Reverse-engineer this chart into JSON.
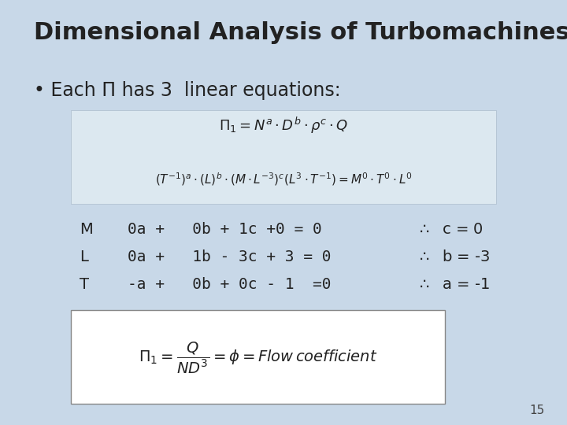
{
  "title": "Dimensional Analysis of Turbomachines",
  "background_color": "#c8d8e8",
  "title_fontsize": 22,
  "title_color": "#222222",
  "bullet_text": "Each Π has 3  linear equations:",
  "bullet_fontsize": 17,
  "eq1_box_color": "#dce8f0",
  "eq1_text1": "$\\Pi_1 = N^a \\cdot D^b \\cdot \\rho^c \\cdot Q$",
  "eq1_text2": "$\\left(T^{-1}\\right)^a \\cdot \\left(L\\right)^b \\cdot \\left(M \\cdot L^{-3}\\right)^c \\left(L^3 \\cdot T^{-1}\\right)= M^0 \\cdot T^0 \\cdot L^0$",
  "rows": [
    {
      "label": "M",
      "eq": "0a +   0b + 1c +0 = 0",
      "result": "$\\therefore$  c = 0"
    },
    {
      "label": "L",
      "eq": "0a +   1b - 3c + 3 = 0",
      "result": "$\\therefore$  b = -3"
    },
    {
      "label": "T",
      "eq": "-a +   0b + 0c - 1  =0",
      "result": "$\\therefore$  a = -1"
    }
  ],
  "eq2_text": "$\\Pi_1 = \\dfrac{Q}{ND^3} = \\phi = Flow\\,coefficient$",
  "eq2_box_color": "#ffffff",
  "page_number": "15",
  "table_fontsize": 14,
  "eq_fontsize": 15
}
